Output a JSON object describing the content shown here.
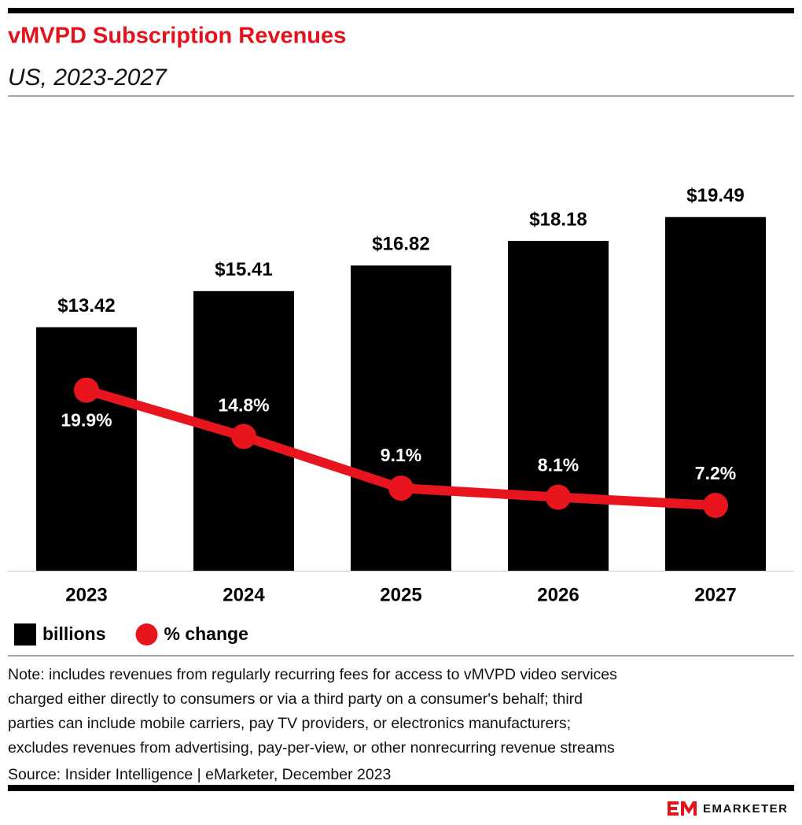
{
  "chart_data": {
    "type": "bar",
    "title": "vMVPD Subscription Revenues",
    "subtitle": "US, 2023-2027",
    "categories": [
      "2023",
      "2024",
      "2025",
      "2026",
      "2027"
    ],
    "series": [
      {
        "name": "billions",
        "type": "bar",
        "color": "#000000",
        "values": [
          13.42,
          15.41,
          16.82,
          18.18,
          19.49
        ],
        "value_labels": [
          "$13.42",
          "$15.41",
          "$16.82",
          "$18.18",
          "$19.49"
        ]
      },
      {
        "name": "% change",
        "type": "line",
        "axis": "y2",
        "color": "#e8141e",
        "values": [
          19.9,
          14.8,
          9.1,
          8.1,
          7.2
        ],
        "value_labels": [
          "19.9%",
          "14.8%",
          "9.1%",
          "8.1%",
          "7.2%"
        ]
      }
    ],
    "ylim": [
      0,
      20
    ],
    "y2lim": [
      0,
      40
    ],
    "legend": "bottom-left",
    "note": [
      "Note: includes revenues from regularly recurring fees for access to vMVPD video services",
      "charged either directly to consumers or via a third party on a consumer's behalf; third",
      "parties can include mobile carriers, pay TV providers, or electronics manufacturers;",
      "excludes revenues from advertising, pay-per-view, or other nonrecurring revenue streams"
    ],
    "source": "Source: Insider Intelligence | eMarketer, December 2023",
    "logo": "EMARKETER"
  }
}
